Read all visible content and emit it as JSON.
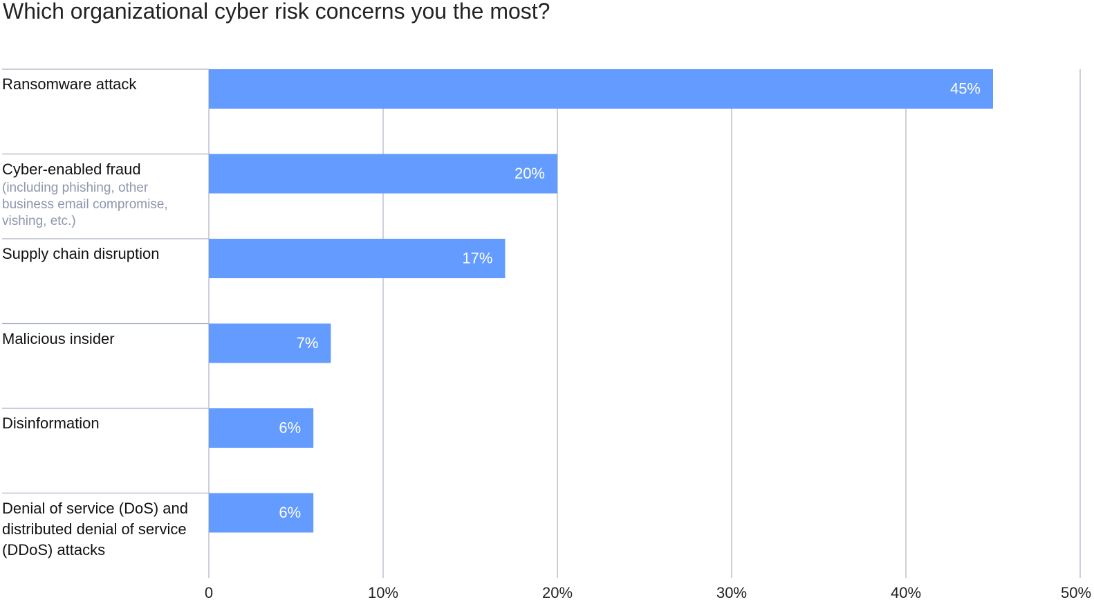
{
  "chart_data": {
    "type": "bar",
    "orientation": "horizontal",
    "title": "Which organizational cyber risk concerns you the most?",
    "categories": [
      "Ransomware attack",
      "Cyber-enabled fraud",
      "Supply chain disruption",
      "Malicious insider",
      "Disinformation",
      "Denial of service (DoS) and distributed denial of service (DDoS) attacks"
    ],
    "category_details": [
      null,
      "(including phishing, other business email compromise, vishing, etc.)",
      null,
      null,
      null,
      null
    ],
    "values": [
      45,
      20,
      17,
      7,
      6,
      6
    ],
    "value_labels": [
      "45%",
      "20%",
      "17%",
      "7%",
      "6%",
      "6%"
    ],
    "color": "#639bff",
    "xlim": [
      0,
      50
    ],
    "xticks": [
      0,
      {
        "value": 10,
        "label": "10%"
      },
      {
        "value": 20,
        "label": "20%"
      },
      {
        "value": 30,
        "label": "30%"
      },
      {
        "value": 40,
        "label": "40%"
      },
      {
        "value": 50,
        "label": "50%"
      }
    ],
    "grid": true
  }
}
